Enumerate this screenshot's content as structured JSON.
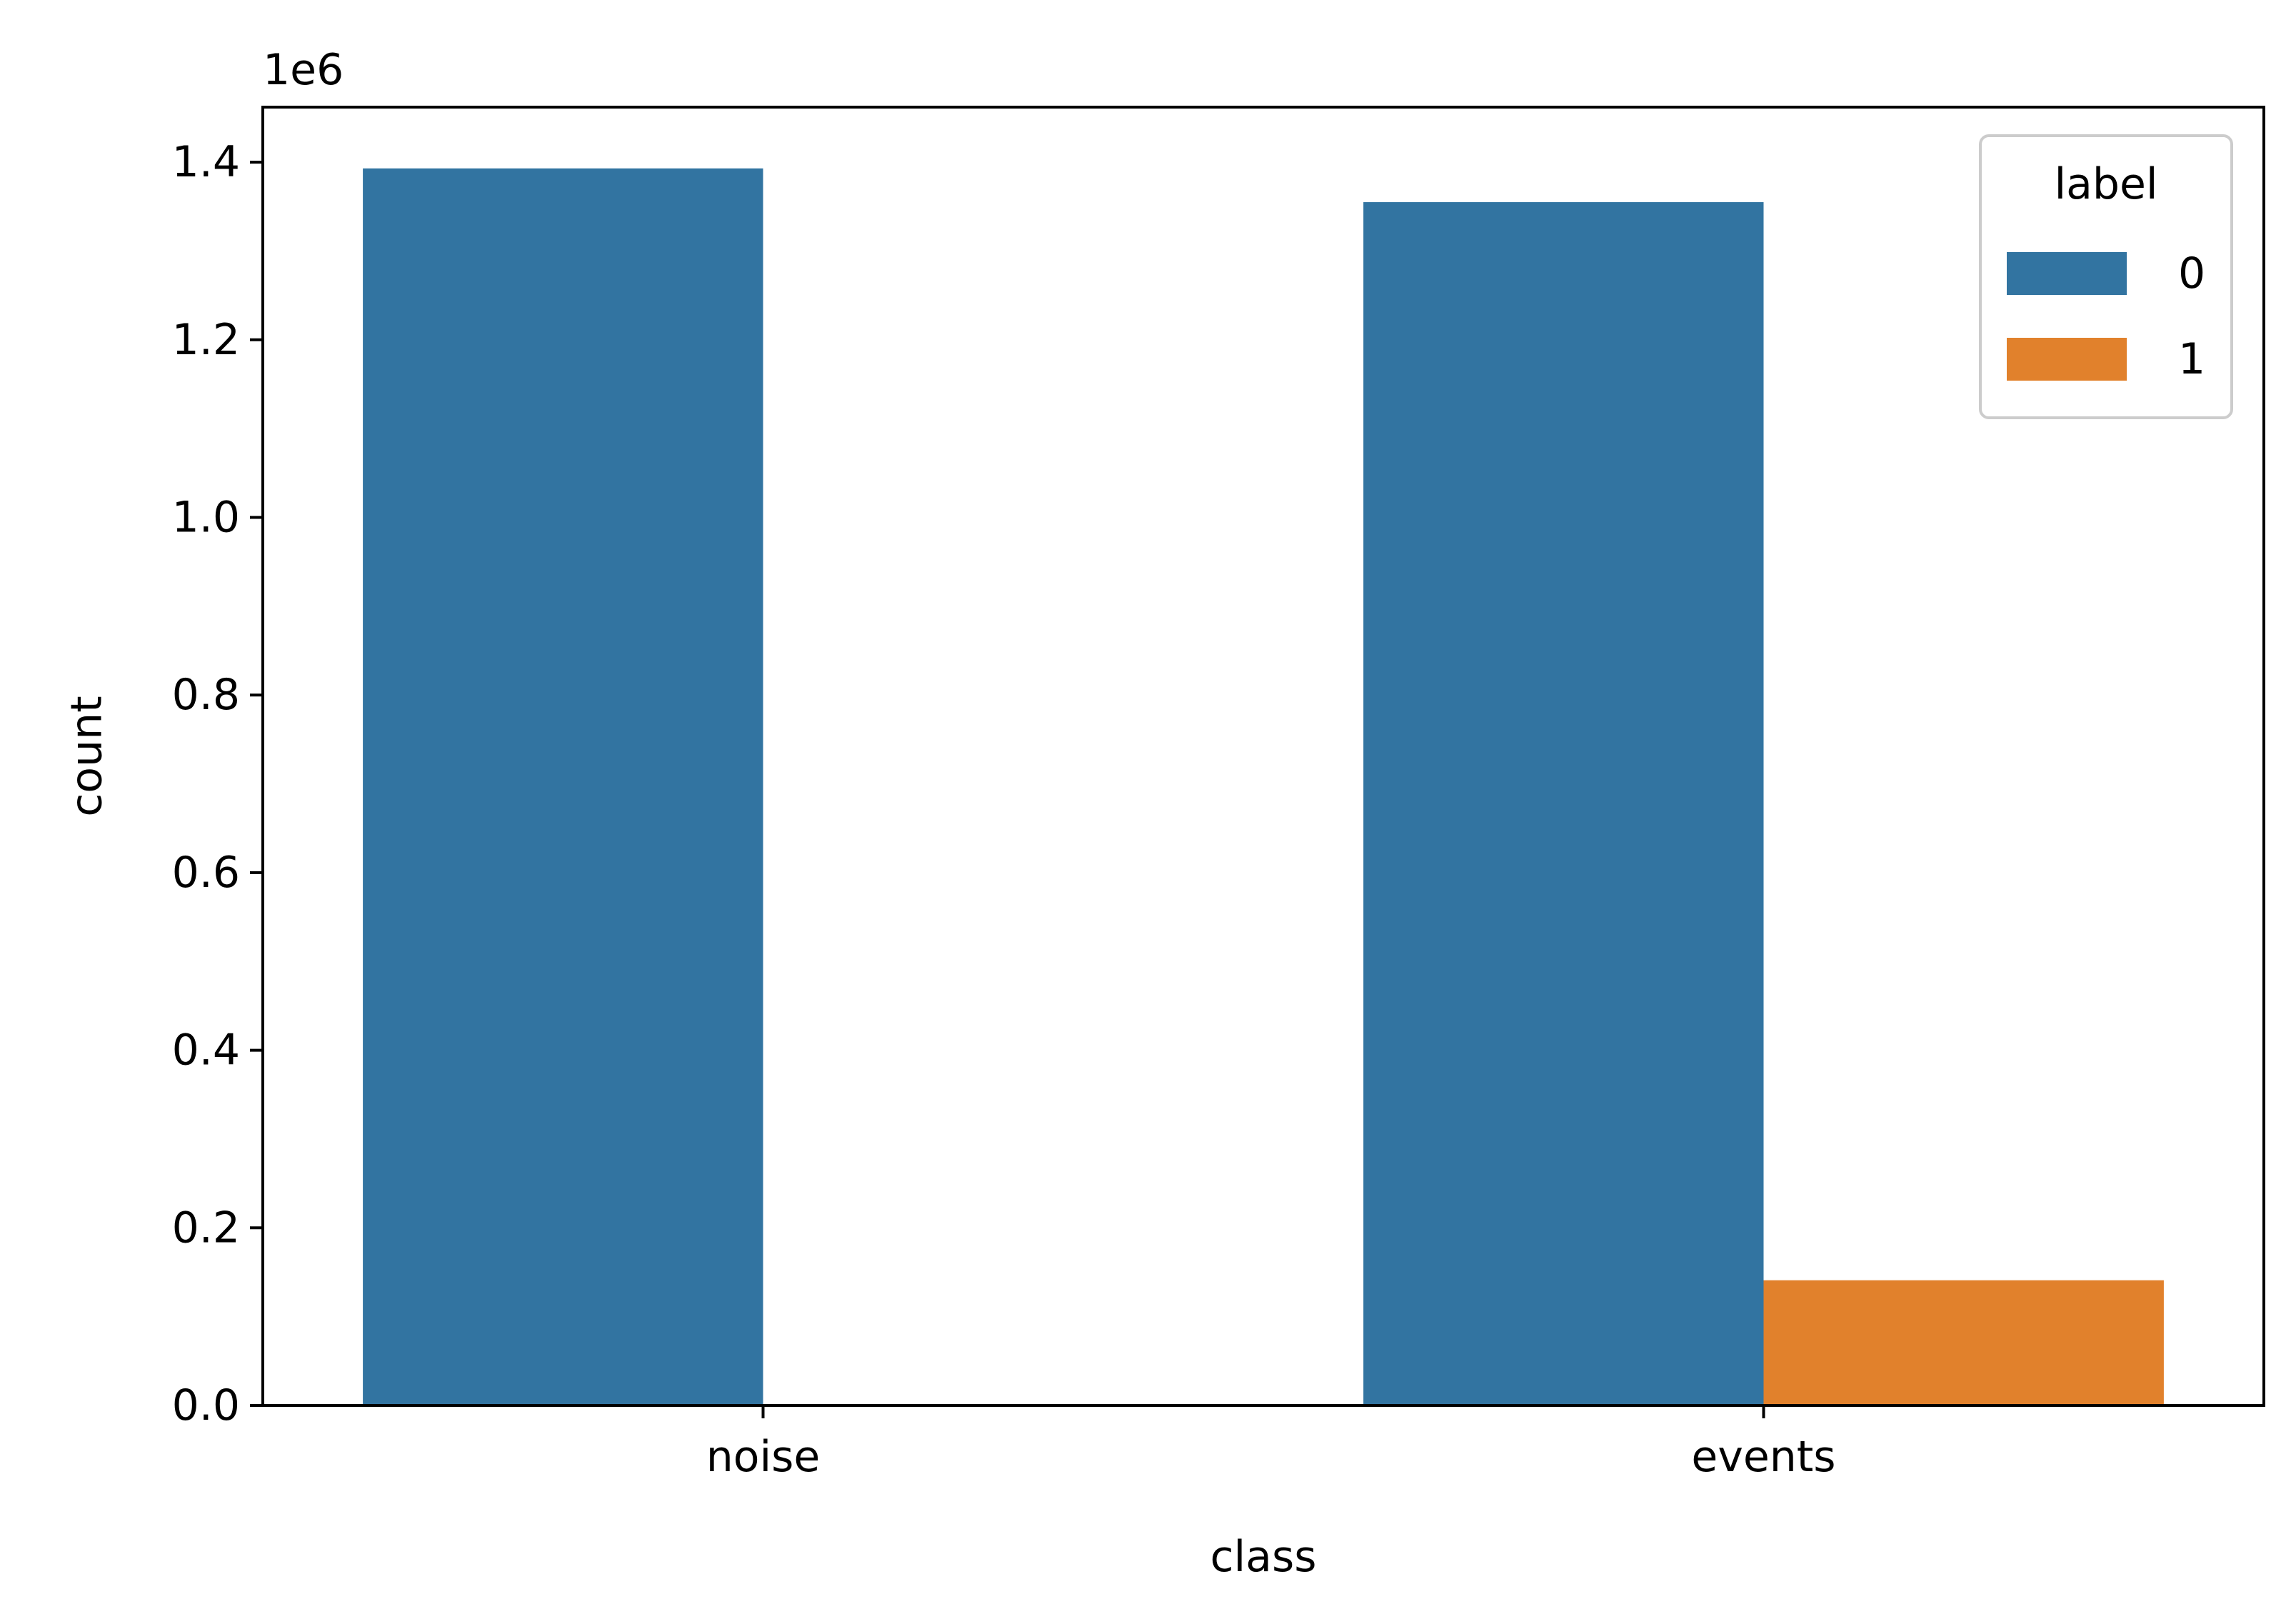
{
  "chart_data": {
    "type": "bar",
    "categories": [
      "noise",
      "events"
    ],
    "series": [
      {
        "name": "0",
        "values": [
          1393000,
          1355000
        ],
        "color": "#3274a1"
      },
      {
        "name": "1",
        "values": [
          0,
          141000
        ],
        "color": "#e1812c"
      }
    ],
    "xlabel": "class",
    "ylabel": "count",
    "ylim": [
      0,
      1462000
    ],
    "yticks": [
      0,
      0.2,
      0.4,
      0.6,
      0.8,
      1.0,
      1.2,
      1.4
    ],
    "ytick_labels": [
      "0.0",
      "0.2",
      "0.4",
      "0.6",
      "0.8",
      "1.0",
      "1.2",
      "1.4"
    ],
    "y_offset_label": "1e6",
    "legend": {
      "title": "label",
      "placement": "top-right"
    },
    "grid": false
  }
}
